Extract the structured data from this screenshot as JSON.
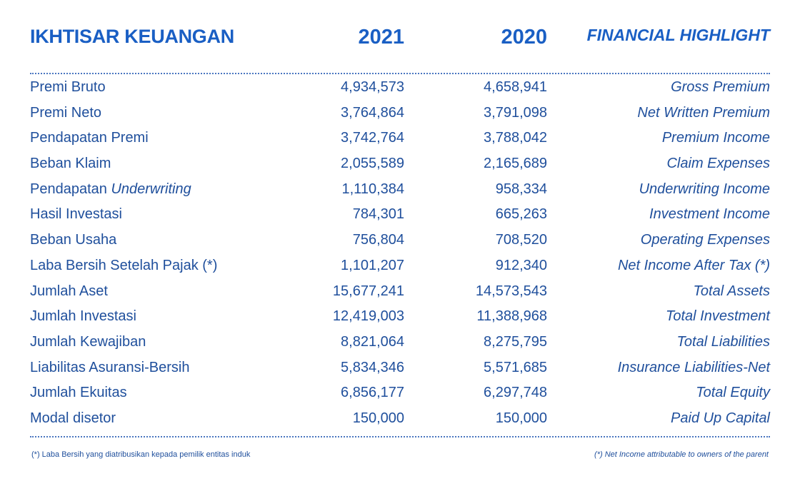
{
  "header": {
    "title_id": "IKHTISAR KEUANGAN",
    "year_current": "2021",
    "year_previous": "2020",
    "title_en": "FINANCIAL HIGHLIGHT"
  },
  "rows": [
    {
      "label_id": "Premi Bruto",
      "value_2021": "4,934,573",
      "value_2020": "4,658,941",
      "label_en": "Gross Premium"
    },
    {
      "label_id": "Premi Neto",
      "value_2021": "3,764,864",
      "value_2020": "3,791,098",
      "label_en": "Net Written Premium"
    },
    {
      "label_id": "Pendapatan Premi",
      "value_2021": "3,742,764",
      "value_2020": "3,788,042",
      "label_en": "Premium Income"
    },
    {
      "label_id": "Beban Klaim",
      "value_2021": "2,055,589",
      "value_2020": "2,165,689",
      "label_en": "Claim Expenses"
    },
    {
      "label_id": "Pendapatan ",
      "label_id_em": "Underwriting",
      "value_2021": "1,110,384",
      "value_2020": "958,334",
      "label_en": "Underwriting Income"
    },
    {
      "label_id": "Hasil Investasi",
      "value_2021": "784,301",
      "value_2020": "665,263",
      "label_en": "Investment Income"
    },
    {
      "label_id": "Beban Usaha",
      "value_2021": "756,804",
      "value_2020": "708,520",
      "label_en": "Operating Expenses"
    },
    {
      "label_id": "Laba Bersih Setelah Pajak (*)",
      "value_2021": "1,101,207",
      "value_2020": "912,340",
      "label_en": "Net Income After Tax (*)"
    },
    {
      "label_id": "Jumlah Aset",
      "value_2021": "15,677,241",
      "value_2020": "14,573,543",
      "label_en": "Total Assets"
    },
    {
      "label_id": "Jumlah Investasi",
      "value_2021": "12,419,003",
      "value_2020": "11,388,968",
      "label_en": "Total Investment"
    },
    {
      "label_id": "Jumlah Kewajiban",
      "value_2021": "8,821,064",
      "value_2020": "8,275,795",
      "label_en": "Total Liabilities"
    },
    {
      "label_id": "Liabilitas Asuransi-Bersih",
      "value_2021": "5,834,346",
      "value_2020": "5,571,685",
      "label_en": "Insurance Liabilities-Net"
    },
    {
      "label_id": "Jumlah Ekuitas",
      "value_2021": "6,856,177",
      "value_2020": "6,297,748",
      "label_en": "Total Equity"
    },
    {
      "label_id": "Modal disetor",
      "value_2021": "150,000",
      "value_2020": "150,000",
      "label_en": "Paid Up Capital"
    }
  ],
  "footnotes": {
    "id": "(*)  Laba Bersih yang diatribusikan kepada pemilik entitas induk",
    "en": "(*) Net Income attributable to owners of the parent"
  }
}
